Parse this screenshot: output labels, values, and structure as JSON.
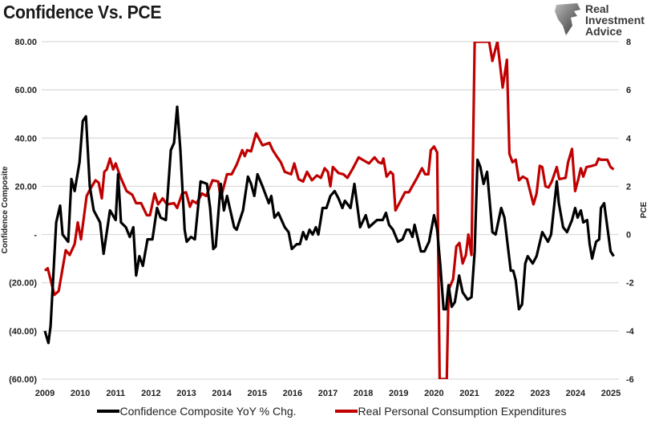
{
  "title": "Confidence Vs. PCE",
  "logo": {
    "line1": "Real",
    "line2": "Investment",
    "line3": "Advice"
  },
  "chart_data": {
    "type": "line",
    "title": "Confidence Vs. PCE",
    "xlabel": "",
    "ylabel": "Confidence Composite",
    "y2label": "PCE",
    "xlim": [
      2009,
      2025
    ],
    "ylim": [
      -60,
      80
    ],
    "y2lim": [
      -6,
      8
    ],
    "x_ticks": [
      "2009",
      "2010",
      "2011",
      "2012",
      "2013",
      "2014",
      "2015",
      "2016",
      "2017",
      "2018",
      "2019",
      "2020",
      "2021",
      "2022",
      "2023",
      "2024",
      "2025"
    ],
    "y_ticks": [
      "80.00",
      "60.00",
      "40.00",
      "20.00",
      "-",
      "(20.00)",
      "(40.00)",
      "(60.00)"
    ],
    "y2_ticks": [
      "8",
      "6",
      "4",
      "2",
      "0",
      "-2",
      "-4",
      "-6"
    ],
    "grid": true,
    "legend_position": "bottom",
    "colors": {
      "confidence": "#000000",
      "pce": "#c00000",
      "grid": "#d9d9d9"
    },
    "series": [
      {
        "name": "Confidence Composite YoY % Chg.",
        "axis": "left",
        "color": "#000000",
        "points": [
          [
            2009.0,
            -40
          ],
          [
            2009.1,
            -45
          ],
          [
            2009.16,
            -38
          ],
          [
            2009.32,
            5
          ],
          [
            2009.43,
            12
          ],
          [
            2009.5,
            0
          ],
          [
            2009.66,
            -3
          ],
          [
            2009.75,
            23
          ],
          [
            2009.84,
            18
          ],
          [
            2009.98,
            30
          ],
          [
            2010.07,
            47
          ],
          [
            2010.16,
            49
          ],
          [
            2010.27,
            20
          ],
          [
            2010.38,
            10
          ],
          [
            2010.56,
            5
          ],
          [
            2010.66,
            -8
          ],
          [
            2010.84,
            10
          ],
          [
            2011.0,
            6
          ],
          [
            2011.07,
            25
          ],
          [
            2011.15,
            5
          ],
          [
            2011.29,
            3
          ],
          [
            2011.4,
            -1
          ],
          [
            2011.5,
            3
          ],
          [
            2011.58,
            -17
          ],
          [
            2011.67,
            -9
          ],
          [
            2011.77,
            -13
          ],
          [
            2011.9,
            -2
          ],
          [
            2012.04,
            -2
          ],
          [
            2012.17,
            11
          ],
          [
            2012.27,
            7
          ],
          [
            2012.42,
            6
          ],
          [
            2012.56,
            35
          ],
          [
            2012.65,
            38
          ],
          [
            2012.74,
            53
          ],
          [
            2012.83,
            35
          ],
          [
            2012.95,
            2
          ],
          [
            2013.01,
            -3
          ],
          [
            2013.13,
            -1
          ],
          [
            2013.24,
            -2
          ],
          [
            2013.4,
            22
          ],
          [
            2013.58,
            21
          ],
          [
            2013.67,
            11
          ],
          [
            2013.76,
            -6
          ],
          [
            2013.83,
            -5
          ],
          [
            2013.97,
            21
          ],
          [
            2014.06,
            10
          ],
          [
            2014.15,
            16
          ],
          [
            2014.35,
            3
          ],
          [
            2014.42,
            2
          ],
          [
            2014.6,
            10
          ],
          [
            2014.74,
            24
          ],
          [
            2014.83,
            21
          ],
          [
            2014.92,
            16
          ],
          [
            2015.01,
            25
          ],
          [
            2015.15,
            20
          ],
          [
            2015.33,
            13
          ],
          [
            2015.4,
            16
          ],
          [
            2015.49,
            7
          ],
          [
            2015.6,
            9
          ],
          [
            2015.78,
            3
          ],
          [
            2015.89,
            1
          ],
          [
            2015.98,
            -6
          ],
          [
            2016.12,
            -4
          ],
          [
            2016.21,
            -4
          ],
          [
            2016.3,
            1
          ],
          [
            2016.39,
            -2
          ],
          [
            2016.48,
            2
          ],
          [
            2016.57,
            0
          ],
          [
            2016.66,
            3
          ],
          [
            2016.73,
            0
          ],
          [
            2016.85,
            11
          ],
          [
            2016.96,
            11
          ],
          [
            2017.07,
            16
          ],
          [
            2017.19,
            18
          ],
          [
            2017.3,
            15
          ],
          [
            2017.41,
            11
          ],
          [
            2017.48,
            14
          ],
          [
            2017.64,
            11
          ],
          [
            2017.75,
            21
          ],
          [
            2017.91,
            3
          ],
          [
            2018.07,
            8
          ],
          [
            2018.16,
            3
          ],
          [
            2018.39,
            6
          ],
          [
            2018.55,
            6
          ],
          [
            2018.64,
            9
          ],
          [
            2018.73,
            4
          ],
          [
            2018.84,
            2
          ],
          [
            2018.98,
            -3
          ],
          [
            2019.11,
            -2
          ],
          [
            2019.22,
            2
          ],
          [
            2019.3,
            2
          ],
          [
            2019.39,
            -1
          ],
          [
            2019.45,
            4
          ],
          [
            2019.63,
            -7
          ],
          [
            2019.73,
            -7
          ],
          [
            2019.86,
            -3
          ],
          [
            2020.0,
            8
          ],
          [
            2020.09,
            2
          ],
          [
            2020.18,
            -13
          ],
          [
            2020.27,
            -31
          ],
          [
            2020.34,
            -31
          ],
          [
            2020.41,
            -21
          ],
          [
            2020.5,
            -30
          ],
          [
            2020.59,
            -28
          ],
          [
            2020.71,
            -17
          ],
          [
            2020.81,
            -24
          ],
          [
            2020.95,
            -27
          ],
          [
            2021.06,
            -26
          ],
          [
            2021.15,
            -7
          ],
          [
            2021.23,
            31
          ],
          [
            2021.31,
            28
          ],
          [
            2021.4,
            21
          ],
          [
            2021.5,
            26
          ],
          [
            2021.65,
            1
          ],
          [
            2021.74,
            0
          ],
          [
            2021.9,
            11
          ],
          [
            2021.99,
            7
          ],
          [
            2022.17,
            -15
          ],
          [
            2022.24,
            -15
          ],
          [
            2022.31,
            -19
          ],
          [
            2022.4,
            -31
          ],
          [
            2022.49,
            -29
          ],
          [
            2022.58,
            -12
          ],
          [
            2022.65,
            -9
          ],
          [
            2022.79,
            -12
          ],
          [
            2022.9,
            -9
          ],
          [
            2023.06,
            1
          ],
          [
            2023.22,
            -3
          ],
          [
            2023.31,
            0
          ],
          [
            2023.47,
            22
          ],
          [
            2023.53,
            13
          ],
          [
            2023.65,
            3
          ],
          [
            2023.76,
            1
          ],
          [
            2023.9,
            6
          ],
          [
            2023.99,
            11
          ],
          [
            2024.06,
            7
          ],
          [
            2024.15,
            10
          ],
          [
            2024.22,
            5
          ],
          [
            2024.33,
            6
          ],
          [
            2024.4,
            -4
          ],
          [
            2024.47,
            -10
          ],
          [
            2024.58,
            -3
          ],
          [
            2024.67,
            -2
          ],
          [
            2024.72,
            11
          ],
          [
            2024.81,
            13
          ],
          [
            2024.99,
            -7
          ],
          [
            2025.08,
            -9
          ]
        ]
      },
      {
        "name": "Real Personal Consumption Expenditures",
        "axis": "right",
        "color": "#c00000",
        "points": [
          [
            2009.0,
            -1.5
          ],
          [
            2009.08,
            -1.4
          ],
          [
            2009.27,
            -2.5
          ],
          [
            2009.39,
            -2.35
          ],
          [
            2009.59,
            -0.65
          ],
          [
            2009.7,
            -0.85
          ],
          [
            2009.84,
            -0.4
          ],
          [
            2009.93,
            0.5
          ],
          [
            2010.02,
            -0.2
          ],
          [
            2010.18,
            1.6
          ],
          [
            2010.29,
            1.9
          ],
          [
            2010.43,
            2.25
          ],
          [
            2010.52,
            2.15
          ],
          [
            2010.61,
            1.5
          ],
          [
            2010.68,
            2.6
          ],
          [
            2010.75,
            2.7
          ],
          [
            2010.84,
            3.15
          ],
          [
            2010.93,
            2.7
          ],
          [
            2011.0,
            2.95
          ],
          [
            2011.13,
            2.4
          ],
          [
            2011.31,
            1.8
          ],
          [
            2011.47,
            1.65
          ],
          [
            2011.58,
            1.3
          ],
          [
            2011.72,
            1.3
          ],
          [
            2011.88,
            0.8
          ],
          [
            2011.97,
            0.8
          ],
          [
            2012.1,
            1.7
          ],
          [
            2012.2,
            1.25
          ],
          [
            2012.33,
            1.5
          ],
          [
            2012.45,
            1.25
          ],
          [
            2012.65,
            1.3
          ],
          [
            2012.74,
            1.1
          ],
          [
            2012.88,
            1.7
          ],
          [
            2012.99,
            1.75
          ],
          [
            2013.1,
            1.15
          ],
          [
            2013.17,
            1.4
          ],
          [
            2013.29,
            1.3
          ],
          [
            2013.44,
            1.7
          ],
          [
            2013.56,
            1.6
          ],
          [
            2013.74,
            2.25
          ],
          [
            2013.9,
            2.2
          ],
          [
            2013.97,
            1.5
          ],
          [
            2014.15,
            2.5
          ],
          [
            2014.28,
            2.5
          ],
          [
            2014.42,
            2.9
          ],
          [
            2014.58,
            3.5
          ],
          [
            2014.65,
            3.25
          ],
          [
            2014.72,
            3.5
          ],
          [
            2014.83,
            3.45
          ],
          [
            2014.97,
            4.2
          ],
          [
            2015.15,
            3.7
          ],
          [
            2015.35,
            3.8
          ],
          [
            2015.44,
            3.5
          ],
          [
            2015.55,
            3.25
          ],
          [
            2015.67,
            3.0
          ],
          [
            2015.78,
            2.6
          ],
          [
            2015.96,
            2.5
          ],
          [
            2016.05,
            2.95
          ],
          [
            2016.17,
            2.3
          ],
          [
            2016.3,
            2.2
          ],
          [
            2016.41,
            2.6
          ],
          [
            2016.55,
            2.25
          ],
          [
            2016.69,
            2.45
          ],
          [
            2016.8,
            2.35
          ],
          [
            2016.91,
            2.75
          ],
          [
            2017.0,
            2.6
          ],
          [
            2017.07,
            2.0
          ],
          [
            2017.14,
            2.8
          ],
          [
            2017.3,
            2.55
          ],
          [
            2017.44,
            2.5
          ],
          [
            2017.55,
            2.35
          ],
          [
            2017.71,
            2.75
          ],
          [
            2017.87,
            3.2
          ],
          [
            2017.98,
            3.1
          ],
          [
            2018.16,
            2.95
          ],
          [
            2018.32,
            3.2
          ],
          [
            2018.43,
            3.0
          ],
          [
            2018.52,
            2.95
          ],
          [
            2018.57,
            3.15
          ],
          [
            2018.66,
            2.4
          ],
          [
            2018.77,
            2.6
          ],
          [
            2018.84,
            2.5
          ],
          [
            2018.91,
            1.0
          ],
          [
            2019.02,
            1.3
          ],
          [
            2019.18,
            1.75
          ],
          [
            2019.29,
            1.75
          ],
          [
            2019.52,
            2.35
          ],
          [
            2019.66,
            2.75
          ],
          [
            2019.75,
            2.5
          ],
          [
            2019.84,
            2.5
          ],
          [
            2019.91,
            3.5
          ],
          [
            2020.0,
            3.65
          ],
          [
            2020.09,
            3.4
          ],
          [
            2020.16,
            -6
          ],
          [
            2020.25,
            -12
          ],
          [
            2020.36,
            -6
          ],
          [
            2020.41,
            -2.3
          ],
          [
            2020.54,
            -1.85
          ],
          [
            2020.63,
            -0.5
          ],
          [
            2020.72,
            -0.35
          ],
          [
            2020.81,
            -1.2
          ],
          [
            2020.9,
            -0.85
          ],
          [
            2020.97,
            0
          ],
          [
            2021.06,
            -0.85
          ],
          [
            2021.15,
            8
          ],
          [
            2021.3,
            11
          ],
          [
            2021.45,
            9
          ],
          [
            2021.56,
            8
          ],
          [
            2021.65,
            7.2
          ],
          [
            2021.79,
            8
          ],
          [
            2021.94,
            6.1
          ],
          [
            2022.06,
            7.25
          ],
          [
            2022.13,
            3.35
          ],
          [
            2022.22,
            3.0
          ],
          [
            2022.31,
            3.1
          ],
          [
            2022.4,
            2.25
          ],
          [
            2022.51,
            2.4
          ],
          [
            2022.63,
            2.3
          ],
          [
            2022.81,
            1.25
          ],
          [
            2022.9,
            1.7
          ],
          [
            2022.99,
            2.85
          ],
          [
            2023.06,
            2.8
          ],
          [
            2023.15,
            2.0
          ],
          [
            2023.24,
            1.95
          ],
          [
            2023.33,
            2.2
          ],
          [
            2023.47,
            2.8
          ],
          [
            2023.54,
            2.3
          ],
          [
            2023.72,
            2.35
          ],
          [
            2023.79,
            3.0
          ],
          [
            2023.9,
            3.55
          ],
          [
            2023.99,
            1.8
          ],
          [
            2024.08,
            2.3
          ],
          [
            2024.15,
            2.75
          ],
          [
            2024.22,
            2.4
          ],
          [
            2024.31,
            2.8
          ],
          [
            2024.47,
            2.85
          ],
          [
            2024.58,
            2.9
          ],
          [
            2024.65,
            3.15
          ],
          [
            2024.72,
            3.1
          ],
          [
            2024.9,
            3.1
          ],
          [
            2024.99,
            2.8
          ],
          [
            2025.08,
            2.7
          ]
        ]
      }
    ]
  }
}
